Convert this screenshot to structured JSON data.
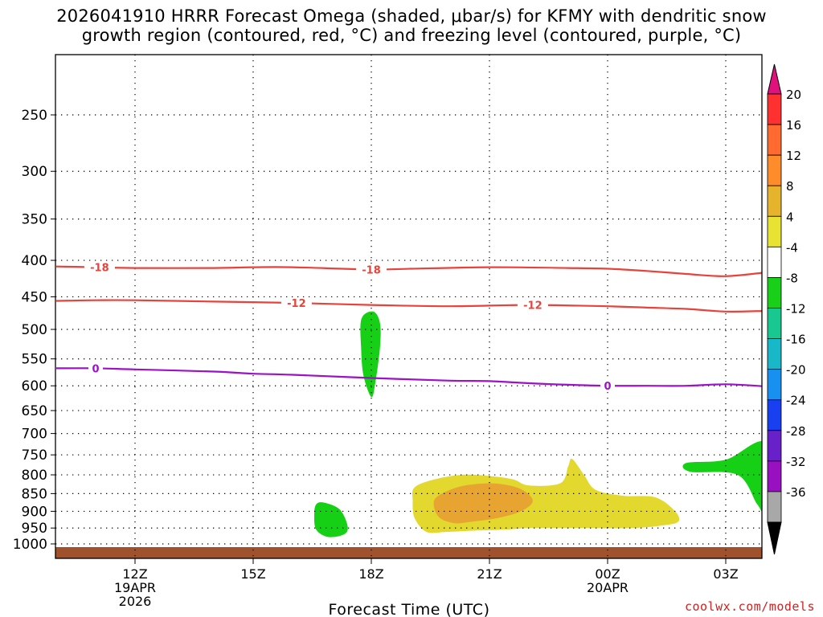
{
  "title_line1": "2026041910 HRRR Forecast Omega (shaded, μbar/s) for KFMY with dendritic snow",
  "title_line2": "growth region (contoured, red, °C) and freezing level (contoured, purple, °C)",
  "credit": "coolwx.com/models",
  "chart_data": {
    "type": "contour-cross-section",
    "title": "2026041910 HRRR Forecast Omega (shaded, μbar/s) for KFMY with dendritic snow growth region (contoured, red, °C) and freezing level (contoured, purple, °C)",
    "xlabel": "Forecast Time (UTC)",
    "ylabel": "",
    "x_range_hours_utc": [
      10,
      28
    ],
    "x_ticks": [
      {
        "hour": 12,
        "label": "12Z",
        "sub": [
          "19APR",
          "2026"
        ]
      },
      {
        "hour": 15,
        "label": "15Z",
        "sub": []
      },
      {
        "hour": 18,
        "label": "18Z",
        "sub": []
      },
      {
        "hour": 21,
        "label": "21Z",
        "sub": []
      },
      {
        "hour": 24,
        "label": "00Z",
        "sub": [
          "20APR"
        ]
      },
      {
        "hour": 27,
        "label": "03Z",
        "sub": []
      }
    ],
    "y_scale": "log",
    "y_range_hpa": [
      1050,
      200
    ],
    "y_ticks": [
      250,
      300,
      350,
      400,
      450,
      500,
      550,
      600,
      650,
      700,
      750,
      800,
      850,
      900,
      950,
      1000
    ],
    "grid": true,
    "contours": [
      {
        "name": "-18",
        "color": "#e8423a",
        "points": [
          [
            10,
            408
          ],
          [
            11,
            409
          ],
          [
            12,
            410
          ],
          [
            14,
            410
          ],
          [
            15,
            409
          ],
          [
            16,
            409
          ],
          [
            18,
            412
          ],
          [
            19,
            411
          ],
          [
            21,
            409
          ],
          [
            23,
            410
          ],
          [
            24,
            411
          ],
          [
            25,
            414
          ],
          [
            26,
            418
          ],
          [
            27,
            421
          ],
          [
            28,
            416
          ]
        ],
        "labels": [
          [
            11.1,
            409
          ],
          [
            18,
            412
          ]
        ]
      },
      {
        "name": "-12",
        "color": "#e8423a",
        "points": [
          [
            10,
            456
          ],
          [
            11,
            455
          ],
          [
            12,
            455
          ],
          [
            14,
            457
          ],
          [
            16,
            459
          ],
          [
            18,
            462
          ],
          [
            20,
            464
          ],
          [
            22,
            462
          ],
          [
            24,
            464
          ],
          [
            25,
            466
          ],
          [
            26,
            468
          ],
          [
            27,
            472
          ],
          [
            28,
            471
          ]
        ],
        "labels": [
          [
            16.1,
            459
          ],
          [
            22.1,
            462
          ]
        ]
      },
      {
        "name": "0",
        "color": "#9b12c8",
        "points": [
          [
            10,
            567
          ],
          [
            11,
            567
          ],
          [
            12,
            569
          ],
          [
            14,
            573
          ],
          [
            15,
            577
          ],
          [
            16,
            579
          ],
          [
            18,
            585
          ],
          [
            20,
            590
          ],
          [
            21,
            591
          ],
          [
            22,
            595
          ],
          [
            23,
            598
          ],
          [
            24,
            600
          ],
          [
            25,
            600
          ],
          [
            26,
            600
          ],
          [
            27,
            597
          ],
          [
            28,
            601
          ]
        ],
        "labels": [
          [
            11,
            567
          ],
          [
            24,
            600
          ]
        ]
      }
    ],
    "shaded_regions": [
      {
        "value_range": [
          -8,
          -4
        ],
        "color": "#15d015",
        "points": [
          [
            17.75,
            483
          ],
          [
            18.05,
            472
          ],
          [
            18.22,
            490
          ],
          [
            18.22,
            530
          ],
          [
            18.1,
            595
          ],
          [
            18,
            622
          ],
          [
            17.8,
            580
          ],
          [
            17.74,
            530
          ]
        ]
      },
      {
        "value_range": [
          -8,
          -4
        ],
        "color": "#15d015",
        "points": [
          [
            16.6,
            880
          ],
          [
            16.8,
            875
          ],
          [
            17.2,
            895
          ],
          [
            17.4,
            945
          ],
          [
            17.3,
            970
          ],
          [
            16.9,
            978
          ],
          [
            16.6,
            955
          ],
          [
            16.55,
            910
          ]
        ]
      },
      {
        "value_range": [
          -8,
          -4
        ],
        "color": "#15d015",
        "points": [
          [
            26.0,
            770
          ],
          [
            27.0,
            762
          ],
          [
            28,
            722
          ],
          [
            28,
            895
          ],
          [
            27.8,
            880
          ],
          [
            27.3,
            800
          ],
          [
            26.1,
            792
          ]
        ]
      },
      {
        "value_range": [
          4,
          8
        ],
        "color": "#e2d82e",
        "points": [
          [
            19.1,
            833
          ],
          [
            19.6,
            812
          ],
          [
            20.3,
            800
          ],
          [
            21,
            803
          ],
          [
            21.6,
            812
          ],
          [
            22.0,
            828
          ],
          [
            22.8,
            822
          ],
          [
            23.0,
            778
          ],
          [
            23.1,
            760
          ],
          [
            23.4,
            800
          ],
          [
            23.7,
            840
          ],
          [
            24.4,
            856
          ],
          [
            25.2,
            860
          ],
          [
            25.7,
            898
          ],
          [
            25.8,
            930
          ],
          [
            25.4,
            942
          ],
          [
            24.6,
            950
          ],
          [
            23.2,
            950
          ],
          [
            22.0,
            950
          ],
          [
            21.4,
            955
          ],
          [
            20.6,
            958
          ],
          [
            19.9,
            962
          ],
          [
            19.4,
            962
          ],
          [
            19.1,
            920
          ],
          [
            19.05,
            870
          ]
        ]
      },
      {
        "value_range": [
          8,
          12
        ],
        "color": "#e7a430",
        "points": [
          [
            19.6,
            868
          ],
          [
            20.0,
            840
          ],
          [
            20.5,
            826
          ],
          [
            21.2,
            823
          ],
          [
            21.8,
            838
          ],
          [
            22.1,
            870
          ],
          [
            21.8,
            900
          ],
          [
            21.2,
            920
          ],
          [
            20.6,
            930
          ],
          [
            20.1,
            935
          ],
          [
            19.7,
            915
          ]
        ]
      }
    ],
    "ground_band": {
      "color": "#a0522d"
    },
    "colorbar": {
      "ticks": [
        "20",
        "16",
        "12",
        "8",
        "4",
        "-4",
        "-8",
        "-12",
        "-16",
        "-20",
        "-24",
        "-28",
        "-32",
        "-36"
      ],
      "segments": [
        "#ff3030",
        "#ff6a30",
        "#ff8c2a",
        "#e6b42c",
        "#e8e232",
        "#ffffff",
        "#18d018",
        "#18c890",
        "#18b8c8",
        "#1890f0",
        "#1840f0",
        "#6820c8",
        "#9810c0",
        "#a8a8a8"
      ],
      "top_color": "#e0107c",
      "bottom_color": "#000000"
    }
  }
}
